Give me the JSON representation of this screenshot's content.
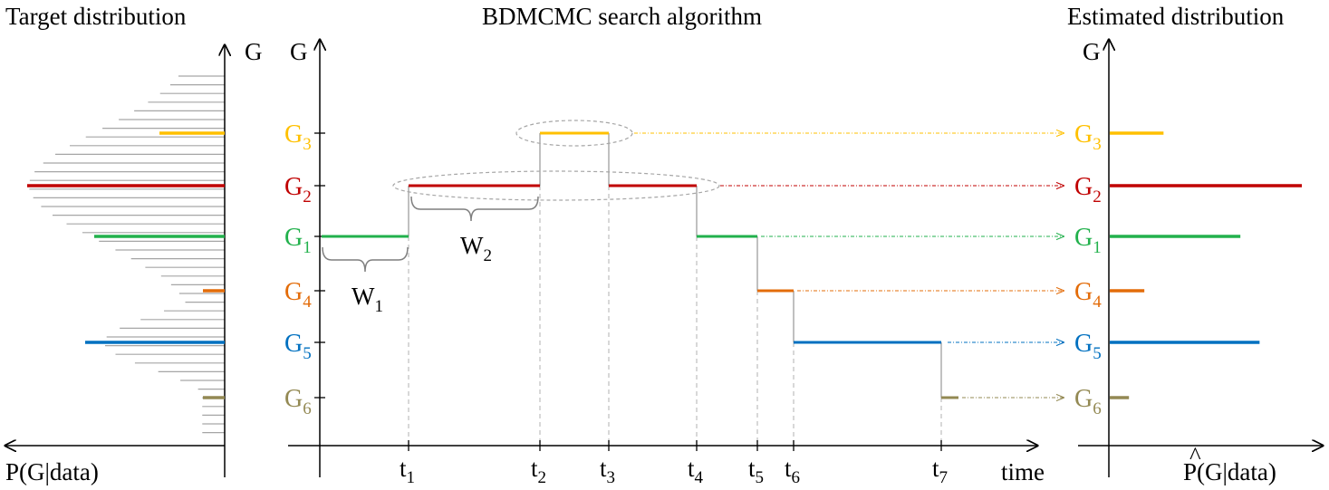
{
  "titles": {
    "left": "Target distribution",
    "center": "BDMCMC search algorithm",
    "right": "Estimated distribution"
  },
  "axes": {
    "g_letter": "G",
    "left_x_label": "P(G|data)",
    "time_label": "time",
    "right_x_label": "P(G|data)",
    "right_x_hat": "^"
  },
  "graphs": [
    {
      "base": "G",
      "sub": "1",
      "color": "#22b14c"
    },
    {
      "base": "G",
      "sub": "2",
      "color": "#c00000"
    },
    {
      "base": "G",
      "sub": "3",
      "color": "#ffc000"
    },
    {
      "base": "G",
      "sub": "4",
      "color": "#e36c09"
    },
    {
      "base": "G",
      "sub": "5",
      "color": "#0070c0"
    },
    {
      "base": "G",
      "sub": "6",
      "color": "#938953"
    }
  ],
  "time_ticks": [
    {
      "base": "t",
      "sub": "1"
    },
    {
      "base": "t",
      "sub": "2"
    },
    {
      "base": "t",
      "sub": "3"
    },
    {
      "base": "t",
      "sub": "4"
    },
    {
      "base": "t",
      "sub": "5"
    },
    {
      "base": "t",
      "sub": "6"
    },
    {
      "base": "t",
      "sub": "7"
    }
  ],
  "waiting_times": [
    {
      "base": "W",
      "sub": "1"
    },
    {
      "base": "W",
      "sub": "2"
    }
  ],
  "estimated_relative_probability": {
    "G1": 0.68,
    "G2": 1.0,
    "G3": 0.28,
    "G4": 0.18,
    "G5": 0.78,
    "G6": 0.1
  }
}
